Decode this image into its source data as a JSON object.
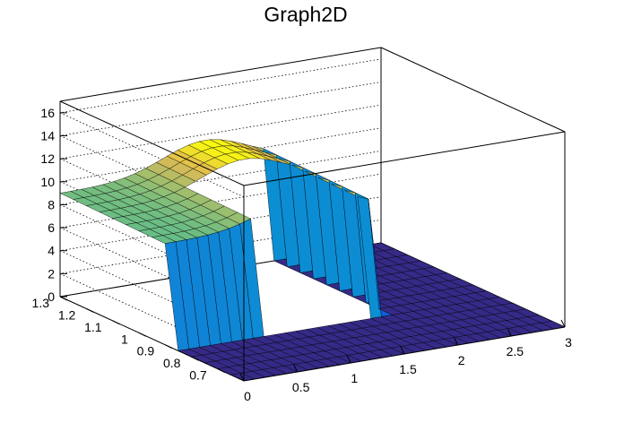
{
  "chart_data": {
    "type": "surface3d",
    "title": "Graph2D",
    "xlabel": "",
    "ylabel": "",
    "zlabel": "",
    "x_range": [
      0,
      3
    ],
    "y_range": [
      0.6,
      1.3
    ],
    "z_range": [
      0,
      17
    ],
    "x_ticks": [
      "0",
      "0.5",
      "1",
      "1.5",
      "2",
      "2.5",
      "3"
    ],
    "y_ticks": [
      "0.7",
      "0.8",
      "0.9",
      "1",
      "1.1",
      "1.2",
      "1.3"
    ],
    "z_ticks": [
      "0",
      "2",
      "4",
      "6",
      "8",
      "10",
      "12",
      "14",
      "16"
    ],
    "grid": true,
    "colormap": "viridis-like",
    "surface": {
      "x_min": 0,
      "x_max": 3,
      "y_min": 0.6,
      "y_max": 1.3,
      "nx": 30,
      "ny": 14,
      "plateau_height": 9,
      "peak_height": 11.5,
      "region_x": [
        0,
        1.95
      ],
      "region_y": [
        0.9,
        1.3
      ],
      "hole_x": [
        0.9,
        1.75
      ],
      "hole_y": [
        0.9,
        1.13
      ],
      "outside_height": 0
    }
  }
}
